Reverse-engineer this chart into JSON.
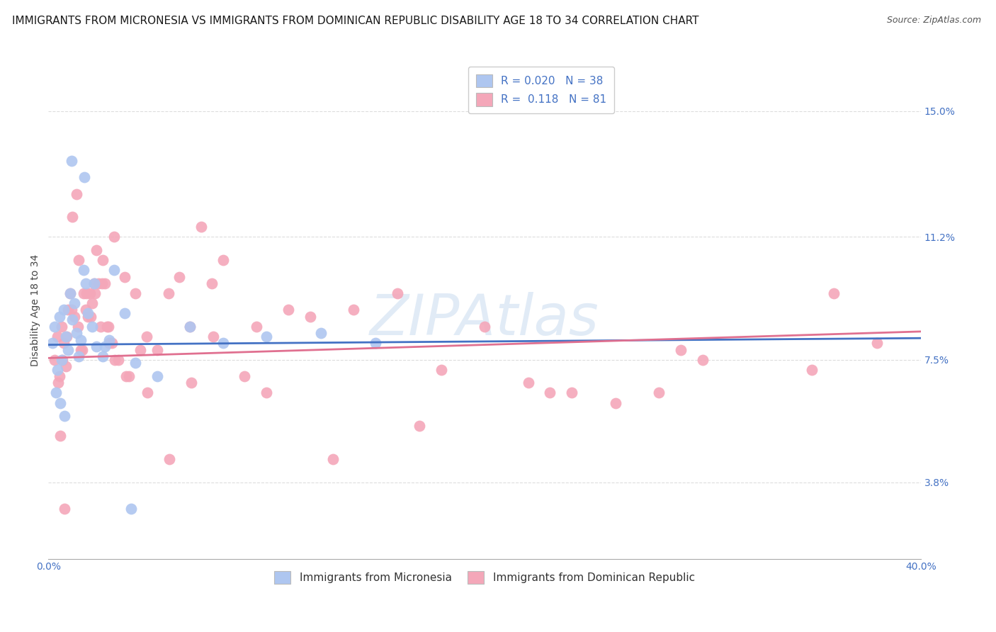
{
  "title": "IMMIGRANTS FROM MICRONESIA VS IMMIGRANTS FROM DOMINICAN REPUBLIC DISABILITY AGE 18 TO 34 CORRELATION CHART",
  "source": "Source: ZipAtlas.com",
  "ylabel": "Disability Age 18 to 34",
  "ytick_labels": [
    "3.8%",
    "7.5%",
    "11.2%",
    "15.0%"
  ],
  "ytick_values": [
    3.8,
    7.5,
    11.2,
    15.0
  ],
  "xmin": 0.0,
  "xmax": 40.0,
  "ymin": 1.5,
  "ymax": 16.5,
  "watermark": "ZIPAtlas",
  "legend_entries": [
    {
      "label": "Immigrants from Micronesia",
      "color": "#aec6f0",
      "R": "0.020",
      "N": "38"
    },
    {
      "label": "Immigrants from Dominican Republic",
      "color": "#f4a7b9",
      "R": "0.118",
      "N": "81"
    }
  ],
  "micronesia_x": [
    0.2,
    0.3,
    0.4,
    0.5,
    0.6,
    0.7,
    0.8,
    0.9,
    1.0,
    1.1,
    1.2,
    1.3,
    1.4,
    1.5,
    1.6,
    1.7,
    1.8,
    2.0,
    2.2,
    2.5,
    2.8,
    3.0,
    3.5,
    4.0,
    5.0,
    6.5,
    8.0,
    10.0,
    12.5,
    15.0,
    0.35,
    0.55,
    0.75,
    1.05,
    1.65,
    2.1,
    2.6,
    3.8
  ],
  "micronesia_y": [
    8.0,
    8.5,
    7.2,
    8.8,
    7.5,
    9.0,
    8.2,
    7.8,
    9.5,
    8.7,
    9.2,
    8.3,
    7.6,
    8.1,
    10.2,
    9.8,
    8.9,
    8.5,
    7.9,
    7.6,
    8.1,
    10.2,
    8.9,
    7.4,
    7.0,
    8.5,
    8.0,
    8.2,
    8.3,
    8.0,
    6.5,
    6.2,
    5.8,
    13.5,
    13.0,
    9.8,
    7.9,
    3.0
  ],
  "dominican_x": [
    0.3,
    0.4,
    0.5,
    0.6,
    0.7,
    0.8,
    0.9,
    1.0,
    1.1,
    1.2,
    1.3,
    1.4,
    1.5,
    1.6,
    1.7,
    1.8,
    1.9,
    2.0,
    2.1,
    2.2,
    2.3,
    2.4,
    2.5,
    2.6,
    2.7,
    2.8,
    2.9,
    3.0,
    3.2,
    3.5,
    3.7,
    4.0,
    4.2,
    4.5,
    5.0,
    5.5,
    6.0,
    6.5,
    7.0,
    7.5,
    8.0,
    9.0,
    10.0,
    11.0,
    12.0,
    14.0,
    16.0,
    18.0,
    20.0,
    22.0,
    24.0,
    26.0,
    28.0,
    30.0,
    35.0,
    38.0,
    0.45,
    0.65,
    0.85,
    1.05,
    1.35,
    1.55,
    1.75,
    1.95,
    2.15,
    2.45,
    2.75,
    3.05,
    3.55,
    4.55,
    5.55,
    6.55,
    7.55,
    9.55,
    13.05,
    17.0,
    23.0,
    29.0,
    36.0,
    0.55,
    0.75
  ],
  "dominican_y": [
    7.5,
    8.2,
    7.0,
    8.5,
    8.0,
    7.3,
    9.0,
    9.5,
    11.8,
    8.8,
    12.5,
    10.5,
    7.8,
    9.5,
    9.0,
    8.8,
    9.5,
    9.2,
    9.8,
    10.8,
    9.8,
    8.5,
    10.5,
    9.8,
    8.5,
    8.0,
    8.0,
    11.2,
    7.5,
    10.0,
    7.0,
    9.5,
    7.8,
    8.2,
    7.8,
    9.5,
    10.0,
    8.5,
    11.5,
    9.8,
    10.5,
    7.0,
    6.5,
    9.0,
    8.8,
    9.0,
    9.5,
    7.2,
    8.5,
    6.8,
    6.5,
    6.2,
    6.5,
    7.5,
    7.2,
    8.0,
    6.8,
    7.5,
    8.2,
    9.0,
    8.5,
    7.8,
    9.5,
    8.8,
    9.5,
    9.8,
    8.5,
    7.5,
    7.0,
    6.5,
    4.5,
    6.8,
    8.2,
    8.5,
    4.5,
    5.5,
    6.5,
    7.8,
    9.5,
    5.2,
    3.0
  ],
  "micronesia_line_color": "#4472c4",
  "dominican_line_color": "#e07090",
  "micronesia_dot_color": "#aec6f0",
  "dominican_dot_color": "#f4a7b9",
  "grid_color": "#dddddd",
  "background_color": "#ffffff",
  "title_fontsize": 11,
  "axis_label_fontsize": 10,
  "tick_fontsize": 10,
  "legend_fontsize": 11,
  "mic_trend_start_y": 7.95,
  "mic_trend_end_y": 8.15,
  "dom_trend_start_y": 7.55,
  "dom_trend_end_y": 8.35
}
